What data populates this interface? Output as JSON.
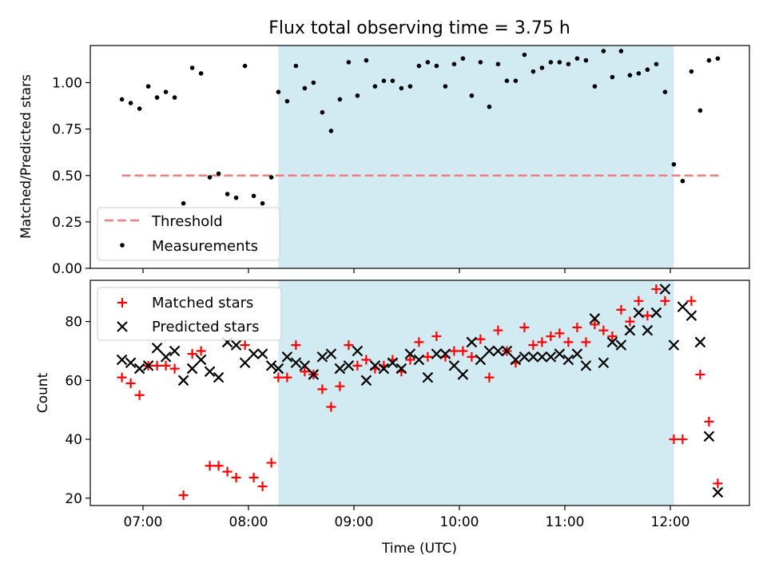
{
  "chart_data": [
    {
      "type": "scatter",
      "title": "Flux total observing time = 3.75 h",
      "xlabel": "",
      "ylabel": "Matched/Predicted stars",
      "ylim": [
        0,
        1.2
      ],
      "yticks": [
        "0.00",
        "0.25",
        "0.50",
        "0.75",
        "1.00"
      ],
      "xlim_hours": [
        6.5,
        12.75
      ],
      "shaded_interval": {
        "start": "08:17",
        "end": "12:02",
        "color": "#add8e6"
      },
      "legend": {
        "position": "lower-left",
        "entries": [
          "Threshold",
          "Measurements"
        ]
      },
      "threshold": {
        "name": "Threshold",
        "value": 0.5,
        "x_start": "06:48",
        "x_end": "12:28",
        "color": "#f08080"
      },
      "series": [
        {
          "name": "Measurements",
          "color": "#000000",
          "x": [
            "06:48",
            "06:53",
            "06:58",
            "07:03",
            "07:08",
            "07:13",
            "07:18",
            "07:23",
            "07:28",
            "07:33",
            "07:38",
            "07:43",
            "07:48",
            "07:53",
            "07:58",
            "08:03",
            "08:08",
            "08:13",
            "08:17",
            "08:22",
            "08:27",
            "08:32",
            "08:37",
            "08:42",
            "08:47",
            "08:52",
            "08:57",
            "09:02",
            "09:07",
            "09:12",
            "09:17",
            "09:22",
            "09:27",
            "09:32",
            "09:37",
            "09:42",
            "09:47",
            "09:52",
            "09:57",
            "10:02",
            "10:07",
            "10:12",
            "10:17",
            "10:22",
            "10:27",
            "10:32",
            "10:37",
            "10:42",
            "10:47",
            "10:52",
            "10:57",
            "11:02",
            "11:07",
            "11:12",
            "11:17",
            "11:22",
            "11:27",
            "11:32",
            "11:37",
            "11:42",
            "11:47",
            "11:52",
            "11:57",
            "12:02",
            "12:07",
            "12:12",
            "12:17",
            "12:22",
            "12:27"
          ],
          "y": [
            0.91,
            0.89,
            0.86,
            0.98,
            0.92,
            0.95,
            0.92,
            0.35,
            1.08,
            1.05,
            0.49,
            0.51,
            0.4,
            0.38,
            1.09,
            0.39,
            0.35,
            0.49,
            0.95,
            0.9,
            1.09,
            0.97,
            1.0,
            0.84,
            0.74,
            0.91,
            1.11,
            0.93,
            1.12,
            0.98,
            1.01,
            1.01,
            0.97,
            0.98,
            1.09,
            1.11,
            1.09,
            0.98,
            1.1,
            1.13,
            0.93,
            1.11,
            0.87,
            1.1,
            1.01,
            1.01,
            1.15,
            1.06,
            1.08,
            1.11,
            1.11,
            1.1,
            1.13,
            1.12,
            0.98,
            1.17,
            1.03,
            1.17,
            1.04,
            1.05,
            1.07,
            1.1,
            0.95,
            0.56,
            0.47,
            1.06,
            0.85,
            1.12,
            1.13
          ]
        }
      ]
    },
    {
      "type": "scatter",
      "title": "",
      "xlabel": "Time (UTC)",
      "ylabel": "Count",
      "ylim": [
        17.5,
        94
      ],
      "yticks": [
        "20",
        "40",
        "60",
        "80"
      ],
      "xlim_hours": [
        6.5,
        12.75
      ],
      "xticks": [
        "07:00",
        "08:00",
        "09:00",
        "10:00",
        "11:00",
        "12:00"
      ],
      "shaded_interval": {
        "start": "08:17",
        "end": "12:02",
        "color": "#add8e6"
      },
      "legend": {
        "position": "top-left",
        "entries": [
          "Matched stars",
          "Predicted stars"
        ]
      },
      "series": [
        {
          "name": "Matched stars",
          "marker": "+",
          "color": "#ff0000",
          "x": [
            "06:48",
            "06:53",
            "06:58",
            "07:03",
            "07:08",
            "07:13",
            "07:18",
            "07:23",
            "07:28",
            "07:33",
            "07:38",
            "07:43",
            "07:48",
            "07:53",
            "07:58",
            "08:03",
            "08:08",
            "08:13",
            "08:17",
            "08:22",
            "08:27",
            "08:32",
            "08:37",
            "08:42",
            "08:47",
            "08:52",
            "08:57",
            "09:02",
            "09:07",
            "09:12",
            "09:17",
            "09:22",
            "09:27",
            "09:32",
            "09:37",
            "09:42",
            "09:47",
            "09:52",
            "09:57",
            "10:02",
            "10:07",
            "10:12",
            "10:17",
            "10:22",
            "10:27",
            "10:32",
            "10:37",
            "10:42",
            "10:47",
            "10:52",
            "10:57",
            "11:02",
            "11:07",
            "11:12",
            "11:17",
            "11:22",
            "11:27",
            "11:32",
            "11:37",
            "11:42",
            "11:47",
            "11:52",
            "11:57",
            "12:02",
            "12:07",
            "12:12",
            "12:17",
            "12:22",
            "12:27"
          ],
          "y": [
            61,
            59,
            55,
            65,
            65,
            65,
            64,
            21,
            69,
            70,
            31,
            31,
            29,
            27,
            72,
            27,
            24,
            32,
            61,
            61,
            72,
            63,
            62,
            57,
            51,
            58,
            72,
            65,
            67,
            64,
            65,
            67,
            63,
            67,
            73,
            68,
            75,
            68,
            70,
            70,
            68,
            74,
            61,
            77,
            70,
            66,
            78,
            72,
            73,
            75,
            76,
            73,
            78,
            73,
            79,
            77,
            75,
            84,
            80,
            87,
            82,
            91,
            87,
            40,
            40,
            87,
            62,
            46,
            25
          ]
        },
        {
          "name": "Predicted stars",
          "marker": "x",
          "color": "#000000",
          "x": [
            "06:48",
            "06:53",
            "06:58",
            "07:03",
            "07:08",
            "07:13",
            "07:18",
            "07:23",
            "07:28",
            "07:33",
            "07:38",
            "07:43",
            "07:48",
            "07:53",
            "07:58",
            "08:03",
            "08:08",
            "08:13",
            "08:17",
            "08:22",
            "08:27",
            "08:32",
            "08:37",
            "08:42",
            "08:47",
            "08:52",
            "08:57",
            "09:02",
            "09:07",
            "09:12",
            "09:17",
            "09:22",
            "09:27",
            "09:32",
            "09:37",
            "09:42",
            "09:47",
            "09:52",
            "09:57",
            "10:02",
            "10:07",
            "10:12",
            "10:17",
            "10:22",
            "10:27",
            "10:32",
            "10:37",
            "10:42",
            "10:47",
            "10:52",
            "10:57",
            "11:02",
            "11:07",
            "11:12",
            "11:17",
            "11:22",
            "11:27",
            "11:32",
            "11:37",
            "11:42",
            "11:47",
            "11:52",
            "11:57",
            "12:02",
            "12:07",
            "12:12",
            "12:17",
            "12:22",
            "12:27"
          ],
          "y": [
            67,
            66,
            64,
            65,
            71,
            68,
            70,
            60,
            64,
            67,
            63,
            61,
            73,
            72,
            66,
            69,
            69,
            65,
            64,
            68,
            66,
            65,
            62,
            68,
            69,
            64,
            65,
            70,
            60,
            65,
            64,
            66,
            64,
            69,
            67,
            61,
            69,
            69,
            65,
            62,
            73,
            67,
            70,
            70,
            70,
            67,
            68,
            68,
            68,
            68,
            69,
            67,
            69,
            65,
            81,
            66,
            73,
            72,
            77,
            83,
            77,
            83,
            91,
            72,
            85,
            82,
            73,
            41,
            22
          ]
        }
      ]
    }
  ]
}
